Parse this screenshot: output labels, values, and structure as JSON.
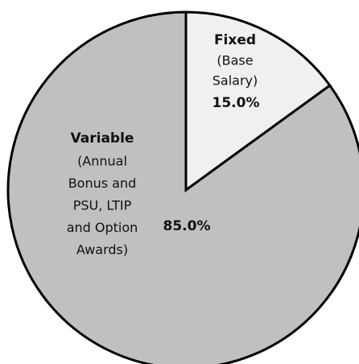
{
  "chart_data": {
    "type": "pie",
    "categories": [
      "Fixed",
      "Variable"
    ],
    "descriptions": [
      [
        "(Base",
        "Salary)"
      ],
      [
        "(Annual",
        "Bonus and",
        "PSU, LTIP",
        "and Option",
        "Awards)"
      ]
    ],
    "values": [
      15,
      85
    ],
    "value_labels": [
      "15.0%",
      "85.0%"
    ],
    "colors": [
      "#f0f0f0",
      "#c0c0c0"
    ]
  }
}
